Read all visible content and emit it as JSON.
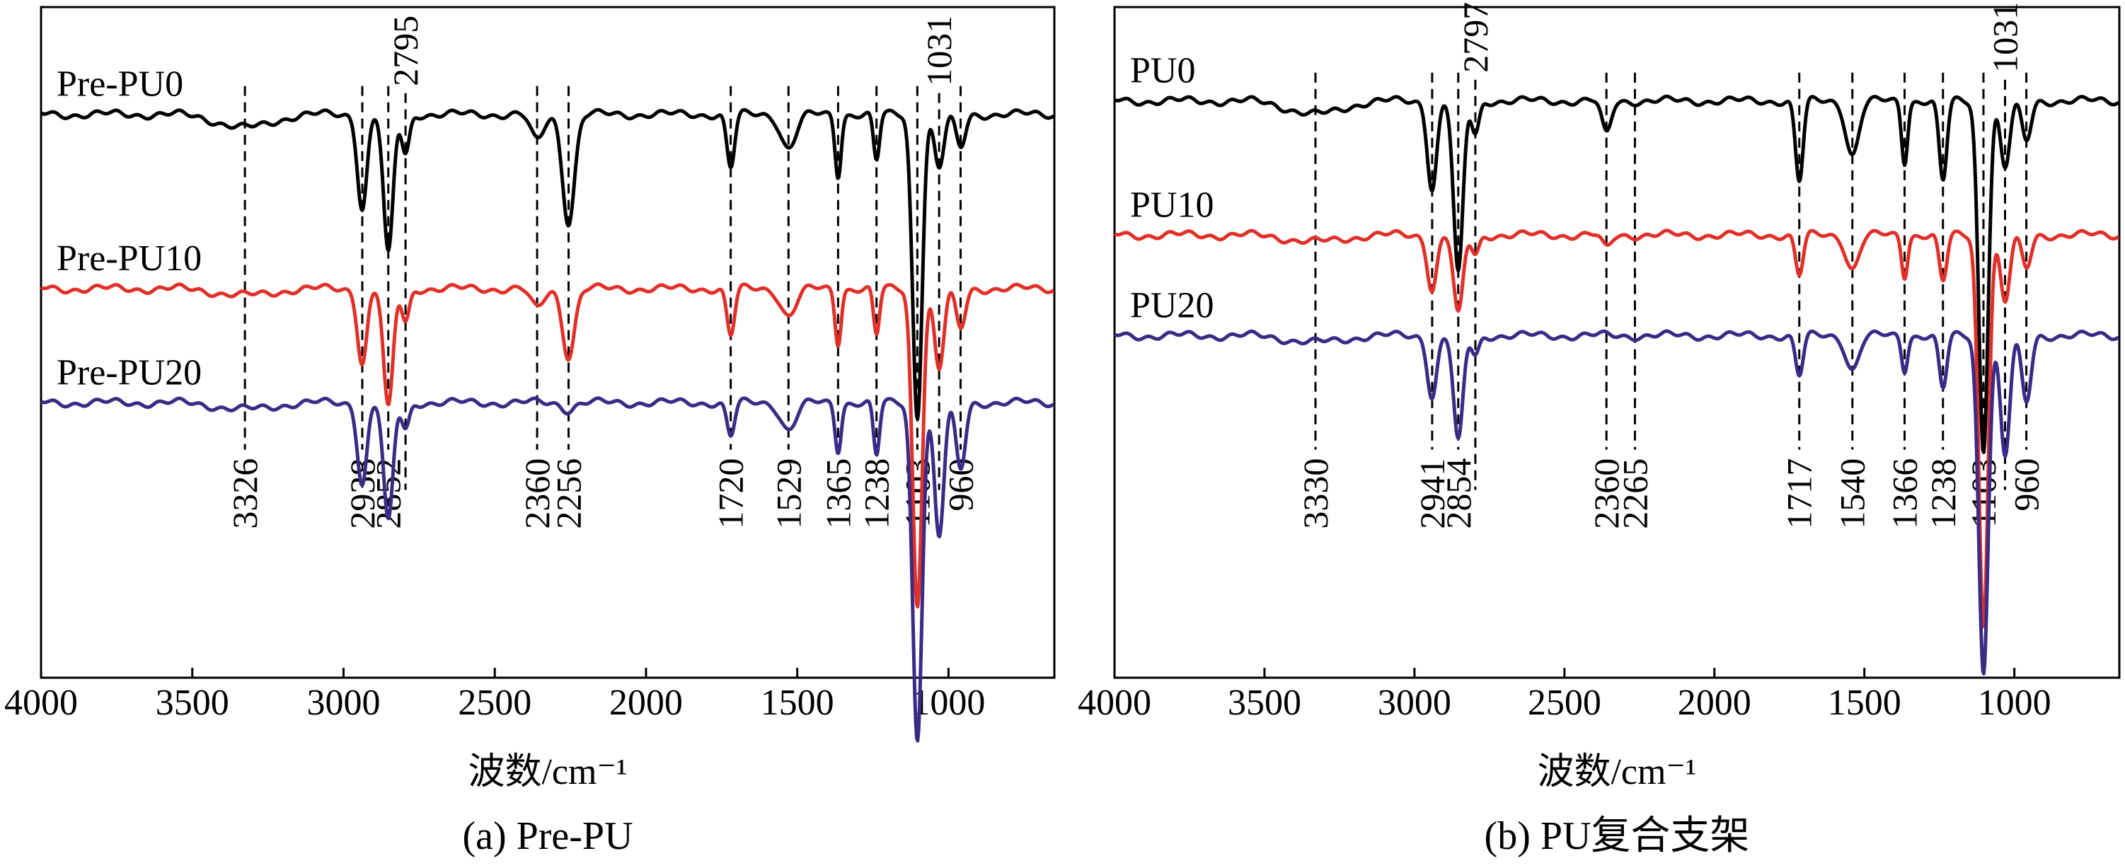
{
  "chart_data": [
    {
      "type": "line",
      "caption": "(a) Pre-PU",
      "xlabel": "波数/cm⁻¹",
      "xlim": [
        4000,
        650
      ],
      "xticks": [
        4000,
        3500,
        3000,
        2500,
        2000,
        1500,
        1000
      ],
      "legend_placement": "left, beside each curve",
      "series": [
        {
          "name": "Pre-PU0",
          "color": "#000000",
          "baseline": 0.84,
          "bands": [
            [
              3326,
              0.02,
              120
            ],
            [
              2938,
              0.14,
              22
            ],
            [
              2852,
              0.21,
              22
            ],
            [
              2795,
              0.06,
              18
            ],
            [
              2360,
              0.04,
              30
            ],
            [
              2256,
              0.16,
              28
            ],
            [
              1720,
              0.08,
              18
            ],
            [
              1529,
              0.05,
              35
            ],
            [
              1365,
              0.09,
              14
            ],
            [
              1238,
              0.07,
              14
            ],
            [
              1103,
              0.45,
              22
            ],
            [
              1031,
              0.08,
              22
            ],
            [
              960,
              0.05,
              22
            ]
          ]
        },
        {
          "name": "Pre-PU10",
          "color": "#e0302a",
          "baseline": 0.58,
          "bands": [
            [
              3326,
              0.01,
              120
            ],
            [
              2938,
              0.11,
              22
            ],
            [
              2852,
              0.18,
              22
            ],
            [
              2795,
              0.05,
              18
            ],
            [
              2360,
              0.03,
              30
            ],
            [
              2256,
              0.1,
              28
            ],
            [
              1720,
              0.07,
              18
            ],
            [
              1529,
              0.04,
              35
            ],
            [
              1365,
              0.08,
              14
            ],
            [
              1238,
              0.07,
              14
            ],
            [
              1103,
              0.47,
              22
            ],
            [
              1031,
              0.12,
              22
            ],
            [
              960,
              0.06,
              22
            ]
          ]
        },
        {
          "name": "Pre-PU20",
          "color": "#3b2a86",
          "baseline": 0.41,
          "bands": [
            [
              3326,
              0.01,
              120
            ],
            [
              2938,
              0.12,
              22
            ],
            [
              2852,
              0.18,
              22
            ],
            [
              2795,
              0.04,
              18
            ],
            [
              2256,
              0.01,
              28
            ],
            [
              1720,
              0.05,
              18
            ],
            [
              1529,
              0.04,
              35
            ],
            [
              1365,
              0.07,
              14
            ],
            [
              1238,
              0.08,
              14
            ],
            [
              1103,
              0.5,
              22
            ],
            [
              1031,
              0.2,
              22
            ],
            [
              960,
              0.1,
              22
            ]
          ]
        }
      ],
      "annotations": [
        {
          "wavenumber": 3326,
          "label": "3326",
          "side": "below"
        },
        {
          "wavenumber": 2938,
          "label": "2938",
          "side": "below"
        },
        {
          "wavenumber": 2852,
          "label": "2852",
          "side": "below"
        },
        {
          "wavenumber": 2795,
          "label": "2795",
          "side": "above"
        },
        {
          "wavenumber": 2360,
          "label": "2360",
          "side": "below"
        },
        {
          "wavenumber": 2256,
          "label": "2256",
          "side": "below"
        },
        {
          "wavenumber": 1720,
          "label": "1720",
          "side": "below"
        },
        {
          "wavenumber": 1529,
          "label": "1529",
          "side": "below"
        },
        {
          "wavenumber": 1365,
          "label": "1365",
          "side": "below"
        },
        {
          "wavenumber": 1238,
          "label": "1238",
          "side": "below"
        },
        {
          "wavenumber": 1103,
          "label": "1103",
          "side": "below"
        },
        {
          "wavenumber": 1031,
          "label": "1031",
          "side": "above"
        },
        {
          "wavenumber": 960,
          "label": "960",
          "side": "below"
        }
      ]
    },
    {
      "type": "line",
      "caption": "(b) PU复合支架",
      "xlabel": "波数/cm⁻¹",
      "xlim": [
        4000,
        650
      ],
      "xticks": [
        4000,
        3500,
        3000,
        2500,
        2000,
        1500,
        1000
      ],
      "legend_placement": "left, beside each curve",
      "series": [
        {
          "name": "PU0",
          "color": "#000000",
          "baseline": 0.86,
          "bands": [
            [
              3330,
              0.02,
              120
            ],
            [
              2941,
              0.13,
              22
            ],
            [
              2854,
              0.26,
              22
            ],
            [
              2797,
              0.05,
              18
            ],
            [
              2360,
              0.05,
              22
            ],
            [
              1717,
              0.12,
              18
            ],
            [
              1540,
              0.08,
              30
            ],
            [
              1366,
              0.09,
              14
            ],
            [
              1238,
              0.12,
              18
            ],
            [
              1103,
              0.52,
              22
            ],
            [
              1031,
              0.1,
              22
            ],
            [
              960,
              0.06,
              22
            ]
          ]
        },
        {
          "name": "PU10",
          "color": "#e0302a",
          "baseline": 0.66,
          "bands": [
            [
              3330,
              0.01,
              120
            ],
            [
              2941,
              0.08,
              22
            ],
            [
              2854,
              0.12,
              22
            ],
            [
              2797,
              0.03,
              18
            ],
            [
              2360,
              0.02,
              22
            ],
            [
              1717,
              0.06,
              18
            ],
            [
              1540,
              0.05,
              30
            ],
            [
              1366,
              0.06,
              14
            ],
            [
              1238,
              0.07,
              18
            ],
            [
              1103,
              0.58,
              22
            ],
            [
              1031,
              0.1,
              22
            ],
            [
              960,
              0.05,
              22
            ]
          ]
        },
        {
          "name": "PU20",
          "color": "#3b2a86",
          "baseline": 0.51,
          "bands": [
            [
              3330,
              0.01,
              120
            ],
            [
              2941,
              0.09,
              22
            ],
            [
              2854,
              0.16,
              22
            ],
            [
              2797,
              0.03,
              18
            ],
            [
              1717,
              0.06,
              18
            ],
            [
              1540,
              0.05,
              30
            ],
            [
              1366,
              0.05,
              14
            ],
            [
              1238,
              0.08,
              18
            ],
            [
              1103,
              0.5,
              22
            ],
            [
              1031,
              0.18,
              22
            ],
            [
              960,
              0.1,
              22
            ]
          ]
        }
      ],
      "annotations": [
        {
          "wavenumber": 3330,
          "label": "3330",
          "side": "below"
        },
        {
          "wavenumber": 2941,
          "label": "2941",
          "side": "below"
        },
        {
          "wavenumber": 2854,
          "label": "2854",
          "side": "below"
        },
        {
          "wavenumber": 2797,
          "label": "2797",
          "side": "above"
        },
        {
          "wavenumber": 2360,
          "label": "2360",
          "side": "below"
        },
        {
          "wavenumber": 2265,
          "label": "2265",
          "side": "below"
        },
        {
          "wavenumber": 1717,
          "label": "1717",
          "side": "below"
        },
        {
          "wavenumber": 1540,
          "label": "1540",
          "side": "below"
        },
        {
          "wavenumber": 1366,
          "label": "1366",
          "side": "below"
        },
        {
          "wavenumber": 1238,
          "label": "1238",
          "side": "below"
        },
        {
          "wavenumber": 1103,
          "label": "1103",
          "side": "below"
        },
        {
          "wavenumber": 1031,
          "label": "1031",
          "side": "above"
        },
        {
          "wavenumber": 960,
          "label": "960",
          "side": "below"
        }
      ]
    }
  ]
}
